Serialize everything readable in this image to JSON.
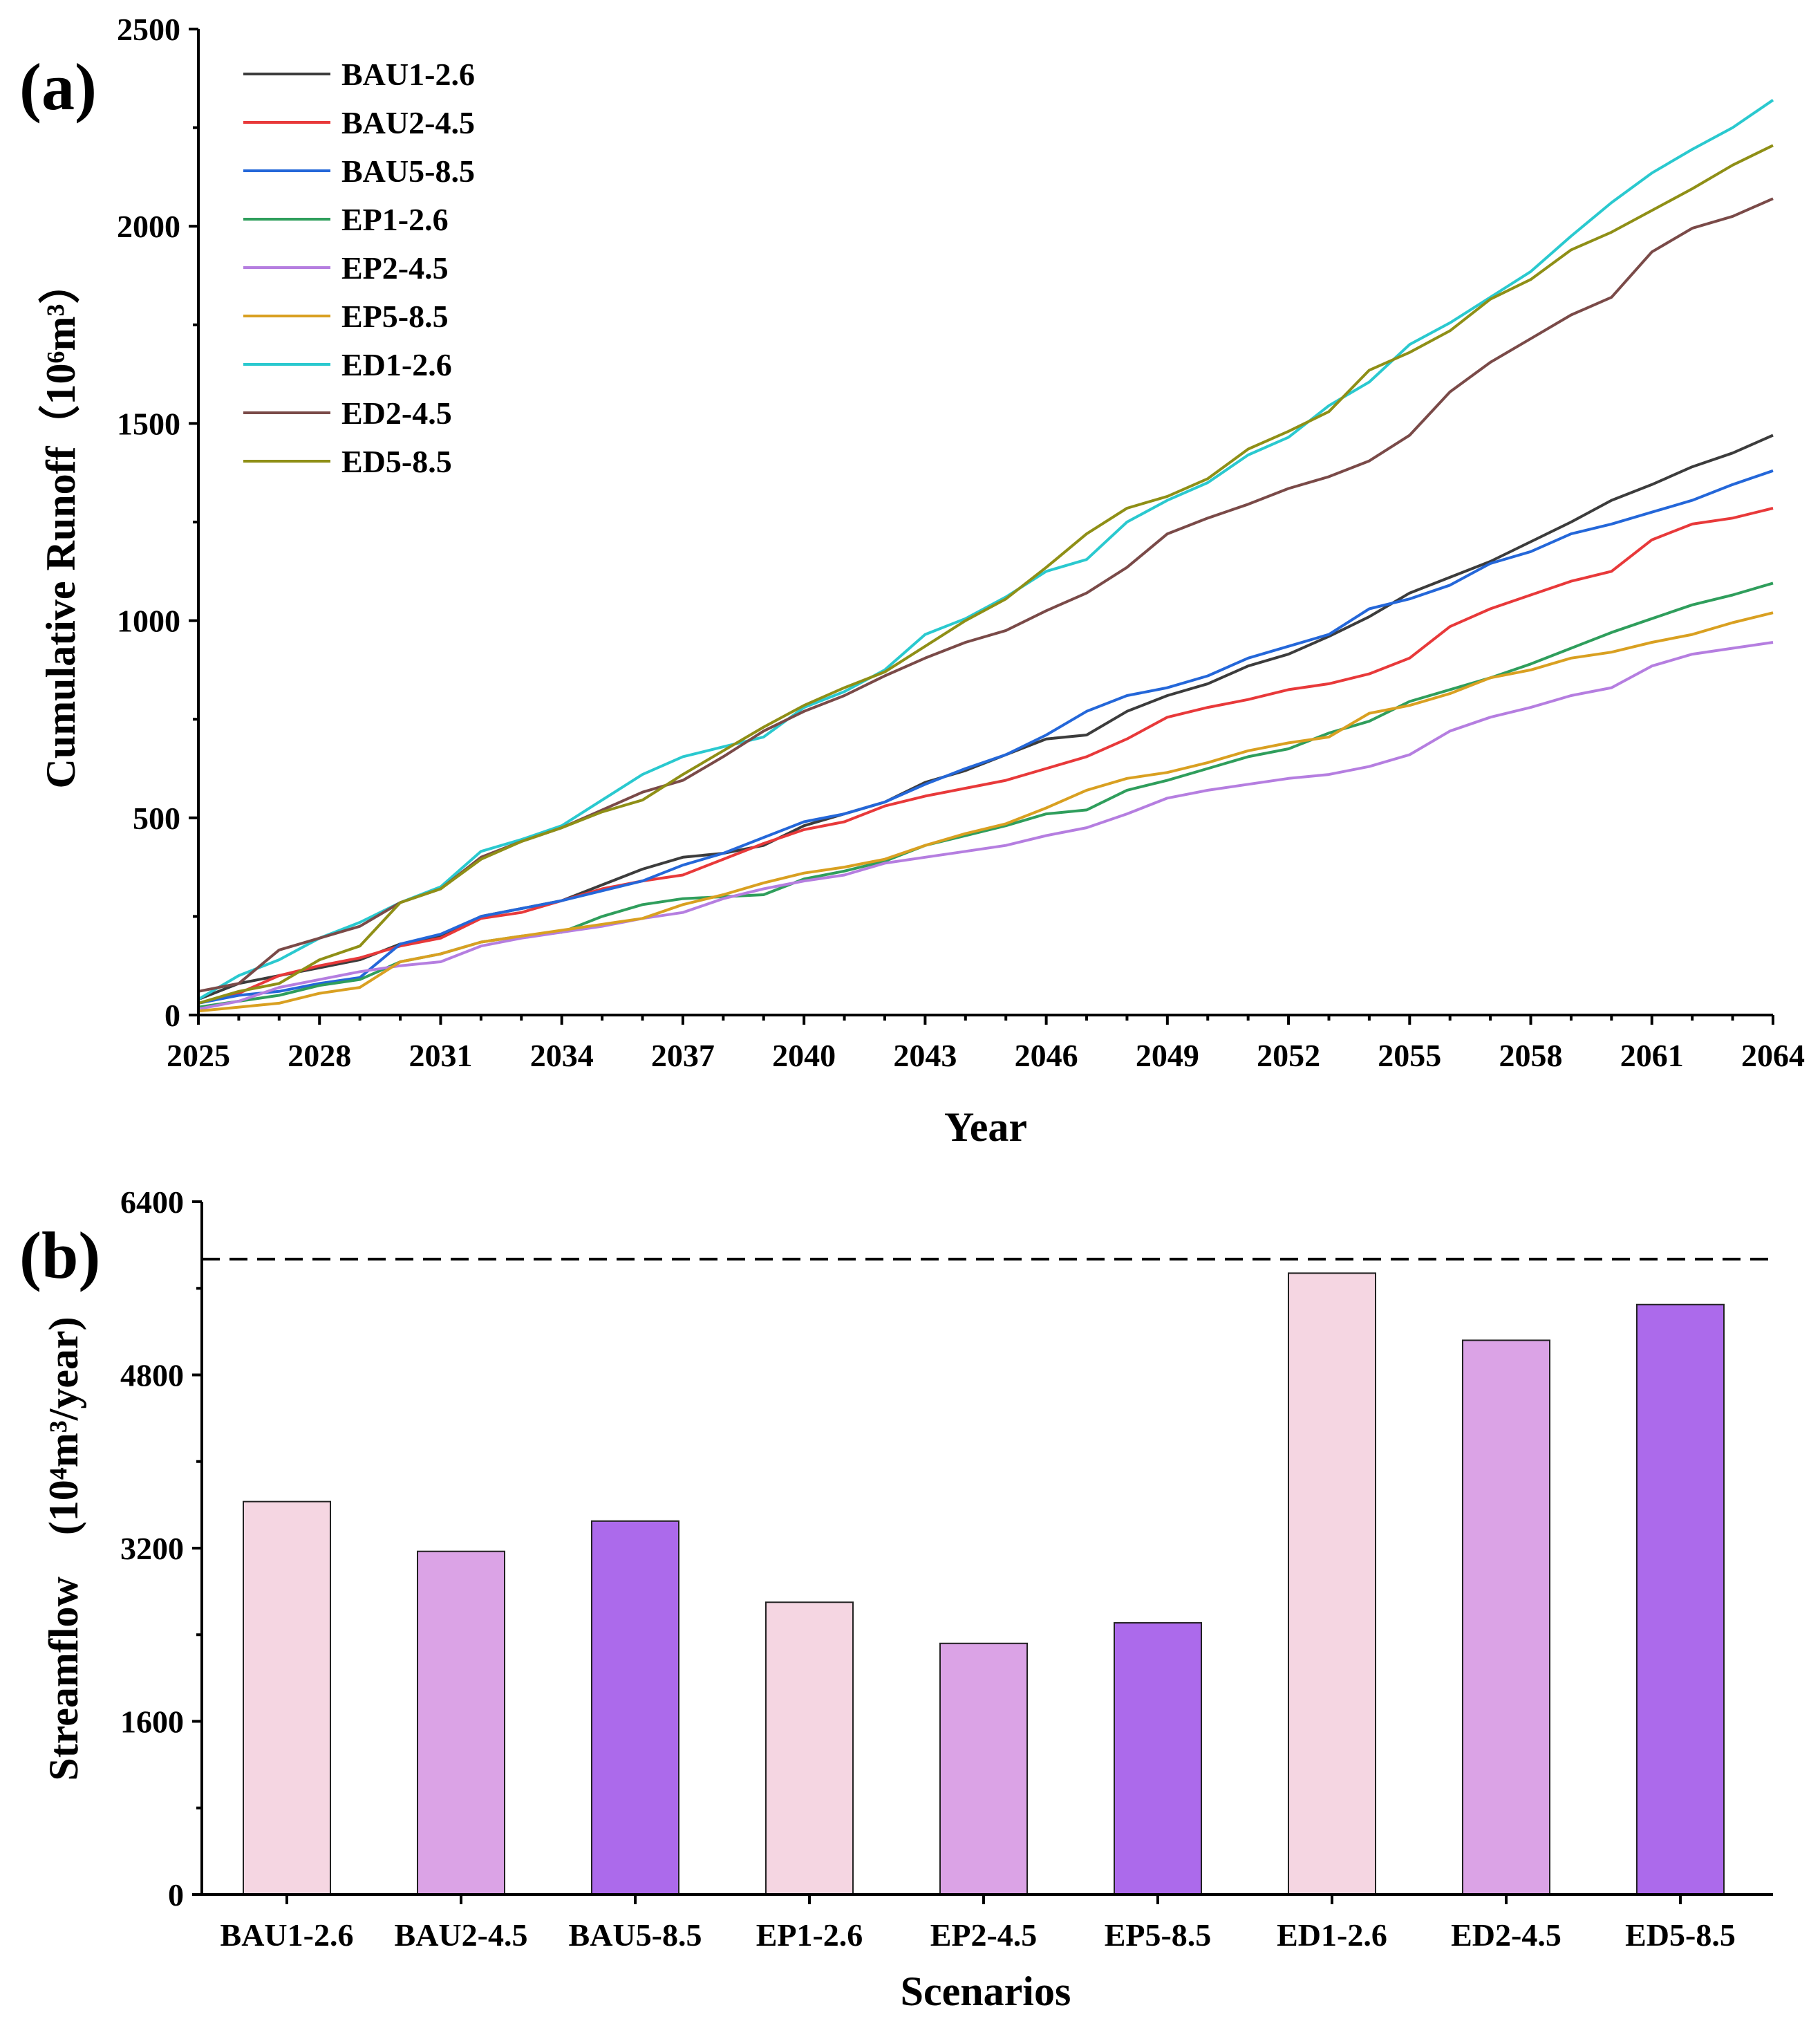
{
  "chart_data": [
    {
      "panel": "(a)",
      "type": "line",
      "xlabel": "Year",
      "ylabel": "Cumulative Runoff（10⁶m³）",
      "xlim": [
        2025,
        2064
      ],
      "ylim": [
        0,
        2500
      ],
      "xticks": [
        "2025",
        "2028",
        "2031",
        "2034",
        "2037",
        "2040",
        "2043",
        "2046",
        "2049",
        "2052",
        "2055",
        "2058",
        "2061",
        "2064"
      ],
      "yticks": [
        "0",
        "500",
        "1000",
        "1500",
        "2000",
        "2500"
      ],
      "legend_position": "top-left",
      "x_start": 2025,
      "x_step": 1,
      "series": [
        {
          "name": "BAU1-2.6",
          "color": "#3c3c3c",
          "values": [
            40,
            80,
            100,
            120,
            140,
            180,
            200,
            250,
            270,
            290,
            330,
            370,
            400,
            410,
            430,
            480,
            510,
            540,
            590,
            620,
            660,
            700,
            710,
            770,
            810,
            840,
            885,
            915,
            960,
            1010,
            1070,
            1110,
            1150,
            1200,
            1250,
            1305,
            1345,
            1390,
            1425,
            1470
          ]
        },
        {
          "name": "BAU2-4.5",
          "color": "#e8393a",
          "values": [
            30,
            55,
            100,
            125,
            145,
            175,
            195,
            245,
            260,
            290,
            320,
            340,
            355,
            395,
            435,
            470,
            490,
            530,
            555,
            575,
            595,
            625,
            655,
            700,
            755,
            780,
            800,
            825,
            840,
            865,
            905,
            985,
            1030,
            1065,
            1100,
            1125,
            1205,
            1245,
            1260,
            1285
          ]
        },
        {
          "name": "BAU5-8.5",
          "color": "#2467d9",
          "values": [
            30,
            50,
            60,
            80,
            95,
            180,
            205,
            250,
            270,
            290,
            315,
            340,
            380,
            410,
            450,
            490,
            510,
            540,
            585,
            625,
            660,
            710,
            770,
            810,
            830,
            860,
            905,
            935,
            965,
            1030,
            1055,
            1090,
            1145,
            1175,
            1220,
            1245,
            1275,
            1305,
            1345,
            1380
          ]
        },
        {
          "name": "EP1-2.6",
          "color": "#2f9e5c",
          "values": [
            20,
            35,
            50,
            75,
            90,
            135,
            155,
            185,
            200,
            210,
            250,
            280,
            295,
            300,
            305,
            345,
            365,
            390,
            430,
            455,
            480,
            510,
            520,
            570,
            595,
            625,
            655,
            675,
            715,
            745,
            795,
            825,
            855,
            890,
            930,
            970,
            1005,
            1040,
            1065,
            1095
          ]
        },
        {
          "name": "EP2-4.5",
          "color": "#b57ee0",
          "values": [
            15,
            35,
            70,
            90,
            110,
            125,
            135,
            175,
            195,
            210,
            225,
            245,
            260,
            295,
            320,
            340,
            355,
            385,
            400,
            415,
            430,
            455,
            475,
            510,
            550,
            570,
            585,
            600,
            610,
            630,
            660,
            720,
            755,
            780,
            810,
            830,
            885,
            915,
            930,
            945
          ]
        },
        {
          "name": "EP5-8.5",
          "color": "#d9a021",
          "values": [
            10,
            20,
            30,
            55,
            70,
            135,
            155,
            185,
            200,
            215,
            230,
            245,
            280,
            305,
            335,
            360,
            375,
            395,
            430,
            460,
            485,
            525,
            570,
            600,
            615,
            640,
            670,
            690,
            705,
            765,
            785,
            815,
            855,
            875,
            905,
            920,
            945,
            965,
            995,
            1020
          ]
        },
        {
          "name": "ED1-2.6",
          "color": "#2ac9cf",
          "values": [
            40,
            100,
            140,
            195,
            235,
            285,
            325,
            415,
            445,
            480,
            545,
            610,
            655,
            680,
            705,
            780,
            820,
            875,
            965,
            1005,
            1060,
            1125,
            1155,
            1250,
            1305,
            1350,
            1420,
            1465,
            1545,
            1605,
            1700,
            1755,
            1820,
            1885,
            1975,
            2060,
            2135,
            2195,
            2250,
            2320
          ]
        },
        {
          "name": "ED2-4.5",
          "color": "#7a4a48",
          "values": [
            60,
            80,
            165,
            195,
            225,
            285,
            320,
            400,
            440,
            475,
            520,
            565,
            595,
            655,
            720,
            770,
            810,
            860,
            905,
            945,
            975,
            1025,
            1070,
            1135,
            1220,
            1260,
            1295,
            1335,
            1365,
            1405,
            1470,
            1580,
            1655,
            1715,
            1775,
            1820,
            1935,
            1995,
            2025,
            2070
          ]
        },
        {
          "name": "ED5-8.5",
          "color": "#8f8f16",
          "values": [
            30,
            60,
            80,
            140,
            175,
            285,
            320,
            395,
            440,
            475,
            515,
            545,
            610,
            670,
            730,
            785,
            830,
            870,
            935,
            1000,
            1055,
            1135,
            1220,
            1285,
            1315,
            1360,
            1435,
            1480,
            1530,
            1635,
            1680,
            1735,
            1815,
            1865,
            1940,
            1985,
            2040,
            2095,
            2155,
            2205
          ]
        }
      ]
    },
    {
      "panel": "(b)",
      "type": "bar",
      "xlabel": "Scenarios",
      "ylabel": "Streamflow　(10⁴m³/year)",
      "categories": [
        "BAU1-2.6",
        "BAU2-4.5",
        "BAU5-8.5",
        "EP1-2.6",
        "EP2-4.5",
        "EP5-8.5",
        "ED1-2.6",
        "ED2-4.5",
        "ED5-8.5"
      ],
      "values": [
        3630,
        3170,
        3450,
        2700,
        2320,
        2510,
        5740,
        5120,
        5450
      ],
      "colors": [
        "#f5d6e2",
        "#dba3e6",
        "#ac6aeb",
        "#f5d6e2",
        "#dba3e6",
        "#ac6aeb",
        "#f5d6e2",
        "#dba3e6",
        "#ac6aeb"
      ],
      "ylim": [
        0,
        6400
      ],
      "yticks": [
        "0",
        "1600",
        "3200",
        "4800",
        "6400"
      ],
      "reference_line": 5870
    }
  ]
}
